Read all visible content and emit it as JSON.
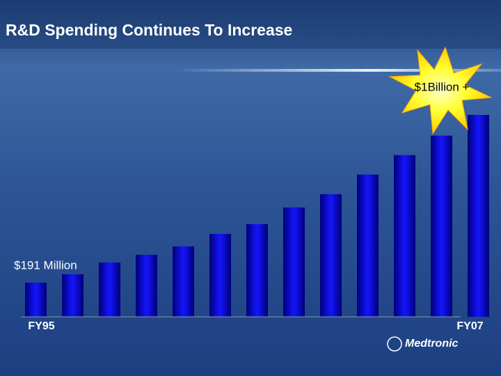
{
  "chart_data": {
    "type": "bar",
    "title": "R&D Spending Continues To Increase",
    "categories": [
      "FY95",
      null,
      null,
      null,
      null,
      null,
      null,
      null,
      null,
      null,
      null,
      null,
      "FY07"
    ],
    "values": [
      191,
      238,
      304,
      347,
      394,
      464,
      519,
      612,
      686,
      796,
      905,
      1014,
      1130
    ],
    "value_labels": [
      "$191 Million",
      null,
      null,
      null,
      null,
      null,
      null,
      null,
      null,
      null,
      null,
      null,
      "$1Billion +"
    ],
    "color": "#0a0aff"
  },
  "logo": "Medtronic"
}
